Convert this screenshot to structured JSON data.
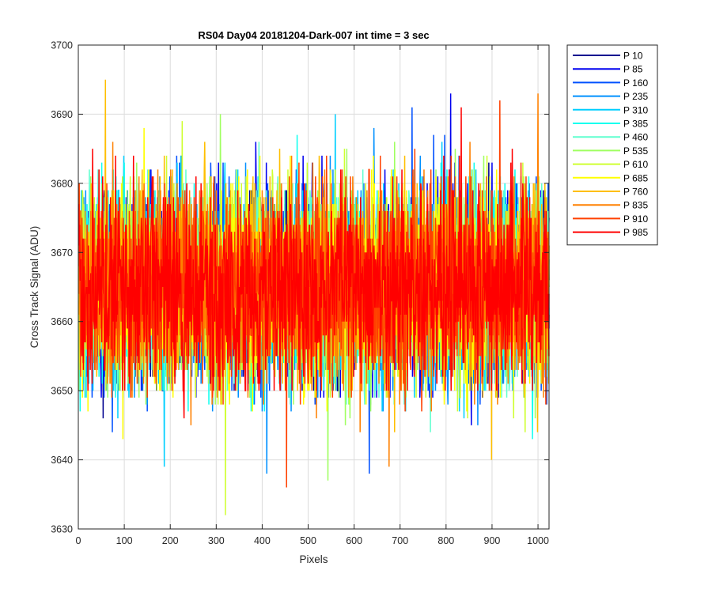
{
  "chart_data": {
    "type": "line",
    "title": "RS04 Day04 20181204-Dark-007 int time = 3 sec",
    "xlabel": "Pixels",
    "ylabel": "Cross Track Signal (ADU)",
    "xlim": [
      0,
      1024
    ],
    "ylim": [
      3630,
      3700
    ],
    "xticks": [
      0,
      100,
      200,
      300,
      400,
      500,
      600,
      700,
      800,
      900,
      1000
    ],
    "yticks": [
      3630,
      3640,
      3650,
      3660,
      3670,
      3680,
      3690,
      3700
    ],
    "grid": true,
    "legend_position": "outside-top-right",
    "series": [
      {
        "name": "P 10",
        "color": "#00008F",
        "mean": 3665,
        "spread": 8,
        "min": 3646,
        "max": 3683
      },
      {
        "name": "P 85",
        "color": "#0000EF",
        "mean": 3665,
        "spread": 8,
        "min": 3645,
        "max": 3693
      },
      {
        "name": "P 160",
        "color": "#0050FF",
        "mean": 3665,
        "spread": 8,
        "min": 3638,
        "max": 3691
      },
      {
        "name": "P 235",
        "color": "#0090FF",
        "mean": 3665,
        "spread": 8,
        "min": 3638,
        "max": 3688
      },
      {
        "name": "P 310",
        "color": "#00CFFF",
        "mean": 3665,
        "spread": 8,
        "min": 3639,
        "max": 3690
      },
      {
        "name": "P 385",
        "color": "#10FFEF",
        "mean": 3665,
        "spread": 8,
        "min": 3643,
        "max": 3687
      },
      {
        "name": "P 460",
        "color": "#60FFCF",
        "mean": 3665,
        "spread": 8,
        "min": 3644,
        "max": 3686
      },
      {
        "name": "P 535",
        "color": "#9FFF60",
        "mean": 3665,
        "spread": 8,
        "min": 3637,
        "max": 3690
      },
      {
        "name": "P 610",
        "color": "#CFFF30",
        "mean": 3665,
        "spread": 8,
        "min": 3632,
        "max": 3689
      },
      {
        "name": "P 685",
        "color": "#FFFF00",
        "mean": 3665,
        "spread": 8,
        "min": 3643,
        "max": 3688
      },
      {
        "name": "P 760",
        "color": "#FFBF00",
        "mean": 3665,
        "spread": 8,
        "min": 3640,
        "max": 3695
      },
      {
        "name": "P 835",
        "color": "#FF8000",
        "mean": 3665,
        "spread": 8,
        "min": 3639,
        "max": 3693
      },
      {
        "name": "P 910",
        "color": "#FF4000",
        "mean": 3665,
        "spread": 8,
        "min": 3636,
        "max": 3692
      },
      {
        "name": "P 985",
        "color": "#FF0000",
        "mean": 3665,
        "spread": 8,
        "min": 3646,
        "max": 3691
      }
    ]
  }
}
